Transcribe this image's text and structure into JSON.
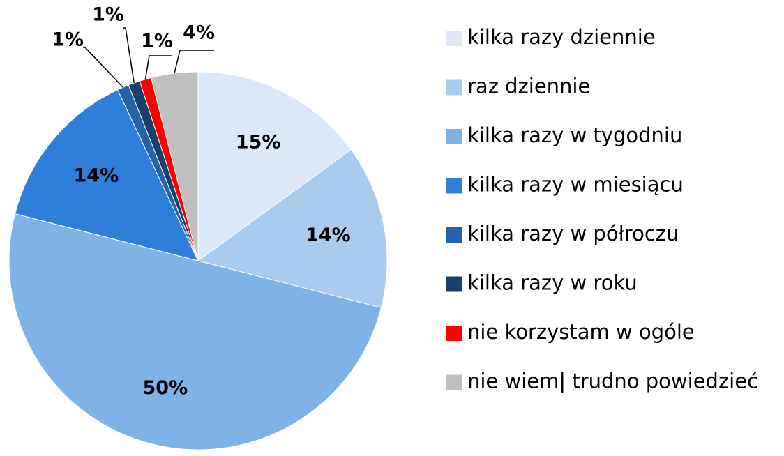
{
  "chart_data": {
    "type": "pie",
    "categories": [
      "kilka razy dziennie",
      "raz dziennie",
      "kilka razy w tygodniu",
      "kilka razy w miesiącu",
      "kilka razy w półroczu",
      "kilka razy w roku",
      "nie korzystam w ogóle",
      "nie wiem| trudno powiedzieć"
    ],
    "values": [
      15,
      14,
      50,
      14,
      1,
      1,
      1,
      4
    ],
    "value_labels": [
      "15%",
      "14%",
      "50%",
      "14%",
      "1%",
      "1%",
      "1%",
      "4%"
    ],
    "colors": [
      "#dae8f8",
      "#a9cbee",
      "#7fb2e6",
      "#2e7fd9",
      "#2563a8",
      "#1a3f6b",
      "#ff0000",
      "#bfbfbf"
    ],
    "legend": "right"
  }
}
